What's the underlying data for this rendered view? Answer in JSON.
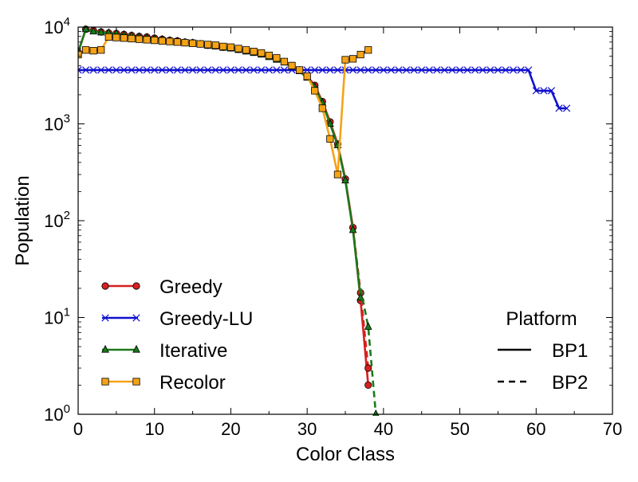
{
  "chart_data": {
    "type": "line",
    "title": "",
    "xlabel": "Color Class",
    "ylabel": "Population",
    "xlim": [
      0,
      70
    ],
    "ylim": [
      1,
      10000
    ],
    "y_scale": "log",
    "grid": false,
    "x_ticks": [
      {
        "value": 0,
        "label": "0"
      },
      {
        "value": 10,
        "label": "10"
      },
      {
        "value": 20,
        "label": "20"
      },
      {
        "value": 30,
        "label": "30"
      },
      {
        "value": 40,
        "label": "40"
      },
      {
        "value": 50,
        "label": "50"
      },
      {
        "value": 60,
        "label": "60"
      },
      {
        "value": 70,
        "label": "70"
      }
    ],
    "y_ticks": [
      {
        "value": 1,
        "base": "10",
        "exp": "0"
      },
      {
        "value": 10,
        "base": "10",
        "exp": "1"
      },
      {
        "value": 100,
        "base": "10",
        "exp": "2"
      },
      {
        "value": 1000,
        "base": "10",
        "exp": "3"
      },
      {
        "value": 10000,
        "base": "10",
        "exp": "4"
      }
    ],
    "series": [
      {
        "name": "Greedy",
        "color": "#d62020",
        "marker": "circle",
        "platforms": [
          {
            "platform": "BP1",
            "x": [
              0,
              1,
              2,
              3,
              4,
              5,
              6,
              7,
              8,
              9,
              10,
              11,
              12,
              13,
              14,
              15,
              16,
              17,
              18,
              19,
              20,
              21,
              22,
              23,
              24,
              25,
              26,
              27,
              28,
              29,
              30,
              31,
              32,
              33,
              34,
              35,
              36,
              37,
              38
            ],
            "y": [
              5500,
              9500,
              9200,
              8900,
              8700,
              8600,
              8400,
              8200,
              8000,
              7900,
              7700,
              7500,
              7300,
              7200,
              7000,
              6900,
              6700,
              6500,
              6400,
              6200,
              6100,
              5900,
              5700,
              5500,
              5300,
              5000,
              4700,
              4400,
              4000,
              3600,
              3100,
              2500,
              1700,
              1050,
              620,
              270,
              85,
              15,
              2.0
            ]
          },
          {
            "platform": "BP2",
            "x": [
              36,
              37,
              38
            ],
            "y": [
              85,
              18,
              3.0
            ]
          }
        ]
      },
      {
        "name": "Greedy-LU",
        "color": "#1010d0",
        "marker": "x",
        "platforms": [
          {
            "platform": "BP1",
            "x": [
              0,
              1,
              2,
              3,
              4,
              5,
              6,
              7,
              8,
              9,
              10,
              11,
              12,
              13,
              14,
              15,
              16,
              17,
              18,
              19,
              20,
              21,
              22,
              23,
              24,
              25,
              26,
              27,
              28,
              29,
              30,
              31,
              32,
              33,
              34,
              35,
              36,
              37,
              38,
              39,
              40,
              41,
              42,
              43,
              44,
              45,
              46,
              47,
              48,
              49,
              50,
              51,
              52,
              53,
              54,
              55,
              56,
              57,
              58,
              59,
              60,
              61,
              62,
              63,
              64
            ],
            "y": [
              3600,
              3600,
              3600,
              3600,
              3600,
              3600,
              3600,
              3600,
              3600,
              3600,
              3600,
              3600,
              3600,
              3600,
              3600,
              3600,
              3600,
              3600,
              3600,
              3600,
              3600,
              3600,
              3600,
              3600,
              3600,
              3600,
              3600,
              3600,
              3600,
              3600,
              3600,
              3600,
              3600,
              3600,
              3600,
              3600,
              3600,
              3600,
              3600,
              3600,
              3600,
              3600,
              3600,
              3600,
              3600,
              3600,
              3600,
              3600,
              3600,
              3600,
              3600,
              3600,
              3600,
              3600,
              3600,
              3600,
              3600,
              3600,
              3600,
              3600,
              2200,
              2200,
              2200,
              1450,
              1450
            ]
          }
        ]
      },
      {
        "name": "Iterative",
        "color": "#1a7a1a",
        "marker": "triangle",
        "platforms": [
          {
            "platform": "BP1",
            "x": [
              0,
              1,
              2,
              3,
              4,
              5,
              6,
              7,
              8,
              9,
              10,
              11,
              12,
              13,
              14,
              15,
              16,
              17,
              18,
              19,
              20,
              21,
              22,
              23,
              24,
              25,
              26,
              27,
              28,
              29,
              30,
              31,
              32,
              33,
              34,
              35,
              36,
              37
            ],
            "y": [
              5500,
              9500,
              9000,
              8800,
              8700,
              8500,
              8300,
              8100,
              7900,
              7800,
              7600,
              7400,
              7200,
              7100,
              6900,
              6800,
              6600,
              6400,
              6300,
              6100,
              6000,
              5800,
              5600,
              5400,
              5200,
              4900,
              4600,
              4300,
              3900,
              3500,
              3000,
              2400,
              1650,
              1000,
              600,
              260,
              80,
              16
            ]
          },
          {
            "platform": "BP2",
            "x": [
              37,
              38,
              39
            ],
            "y": [
              20,
              8,
              1.0
            ]
          }
        ]
      },
      {
        "name": "Recolor",
        "color": "#f5a316",
        "marker": "square",
        "platforms": [
          {
            "platform": "BP1",
            "x": [
              0,
              1,
              2,
              3,
              4,
              5,
              6,
              7,
              8,
              9,
              10,
              11,
              12,
              13,
              14,
              15,
              16,
              17,
              18,
              19,
              20,
              21,
              22,
              23,
              24,
              25,
              26,
              27,
              28,
              29,
              30,
              31,
              32,
              33,
              34,
              35,
              36,
              37,
              38
            ],
            "y": [
              5200,
              5800,
              5700,
              5800,
              7900,
              7800,
              7700,
              7600,
              7500,
              7400,
              7300,
              7200,
              7100,
              7000,
              6900,
              6800,
              6700,
              6600,
              6500,
              6300,
              6200,
              6000,
              5800,
              5600,
              5400,
              5100,
              4800,
              4400,
              4000,
              3600,
              3100,
              2200,
              1450,
              700,
              300,
              4600,
              4700,
              5200,
              5800
            ]
          }
        ]
      }
    ],
    "legend": {
      "placement": "lower-left",
      "entries": [
        "Greedy",
        "Greedy-LU",
        "Iterative",
        "Recolor"
      ]
    },
    "platform_legend": {
      "placement": "lower-right",
      "title": "Platform",
      "entries": [
        {
          "label": "BP1",
          "style": "solid"
        },
        {
          "label": "BP2",
          "style": "dashed"
        }
      ]
    }
  }
}
